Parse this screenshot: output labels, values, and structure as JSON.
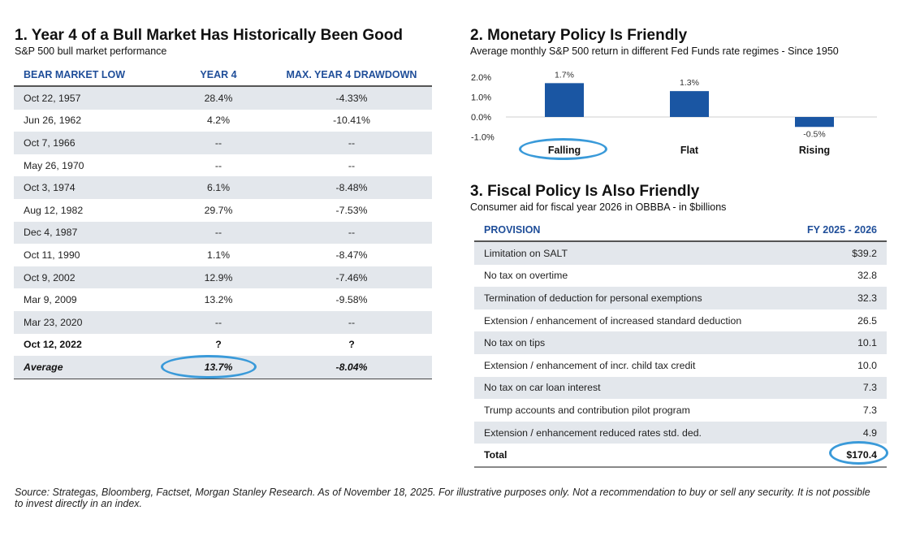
{
  "section1": {
    "title": "1. Year 4 of a Bull Market Has Historically Been Good",
    "subtitle": "S&P 500 bull market performance",
    "columns": [
      "BEAR MARKET LOW",
      "YEAR 4",
      "MAX. YEAR 4 DRAWDOWN"
    ],
    "rows": [
      [
        "Oct 22, 1957",
        "28.4%",
        "-4.33%"
      ],
      [
        "Jun 26, 1962",
        "4.2%",
        "-10.41%"
      ],
      [
        "Oct 7, 1966",
        "--",
        "--"
      ],
      [
        "May 26, 1970",
        "--",
        "--"
      ],
      [
        "Oct 3, 1974",
        "6.1%",
        "-8.48%"
      ],
      [
        "Aug 12, 1982",
        "29.7%",
        "-7.53%"
      ],
      [
        "Dec 4, 1987",
        "--",
        "--"
      ],
      [
        "Oct 11, 1990",
        "1.1%",
        "-8.47%"
      ],
      [
        "Oct 9, 2002",
        "12.9%",
        "-7.46%"
      ],
      [
        "Mar 9, 2009",
        "13.2%",
        "-9.58%"
      ],
      [
        "Mar 23, 2020",
        "--",
        "--"
      ]
    ],
    "current_row": [
      "Oct 12, 2022",
      "?",
      "?"
    ],
    "average_row": [
      "Average",
      "13.7%",
      "-8.04%"
    ]
  },
  "section2": {
    "title": "2. Monetary Policy Is Friendly",
    "subtitle": "Average monthly S&P 500 return in different Fed Funds rate regimes - Since 1950"
  },
  "chart_data": {
    "type": "bar",
    "title": "2. Monetary Policy Is Friendly",
    "subtitle": "Average monthly S&P 500 return in different Fed Funds rate regimes - Since 1950",
    "categories": [
      "Falling",
      "Flat",
      "Rising"
    ],
    "values": [
      1.7,
      1.3,
      -0.5
    ],
    "data_labels": [
      "1.7%",
      "1.3%",
      "-0.5%"
    ],
    "ytick_labels": [
      "2.0%",
      "1.0%",
      "0.0%",
      "-1.0%"
    ],
    "yticks": [
      2.0,
      1.0,
      0.0,
      -1.0
    ],
    "ylim": [
      -1.0,
      2.0
    ],
    "xlabel": "",
    "ylabel": "",
    "grid": false,
    "legend": "none",
    "bar_color": "#1a56a3",
    "highlighted_category": "Falling"
  },
  "section3": {
    "title": "3. Fiscal Policy Is Also Friendly",
    "subtitle": "Consumer aid for fiscal year 2026 in OBBBA - in $billions",
    "columns": [
      "PROVISION",
      "FY 2025 - 2026"
    ],
    "rows": [
      [
        "Limitation on SALT",
        "$39.2"
      ],
      [
        "No tax on overtime",
        "32.8"
      ],
      [
        "Termination of deduction for personal exemptions",
        "32.3"
      ],
      [
        "Extension / enhancement of increased standard deduction",
        "26.5"
      ],
      [
        "No tax on tips",
        "10.1"
      ],
      [
        "Extension / enhancement of incr. child tax credit",
        "10.0"
      ],
      [
        "No tax on car loan interest",
        "7.3"
      ],
      [
        "Trump accounts and contribution pilot program",
        "7.3"
      ],
      [
        "Extension / enhancement reduced rates std. ded.",
        "4.9"
      ]
    ],
    "total_row": [
      "Total",
      "$170.4"
    ]
  },
  "footer": "Source: Strategas, Bloomberg, Factset, Morgan Stanley Research. As of November 18, 2025. For illustrative purposes only. Not a recommendation to buy or sell any security. It is not possible to invest directly in an index.",
  "colors": {
    "header_blue": "#1f4e99",
    "bar_blue": "#1a56a3",
    "row_alt": "#e3e7ec",
    "highlight_ellipse": "#3a9ad9"
  }
}
